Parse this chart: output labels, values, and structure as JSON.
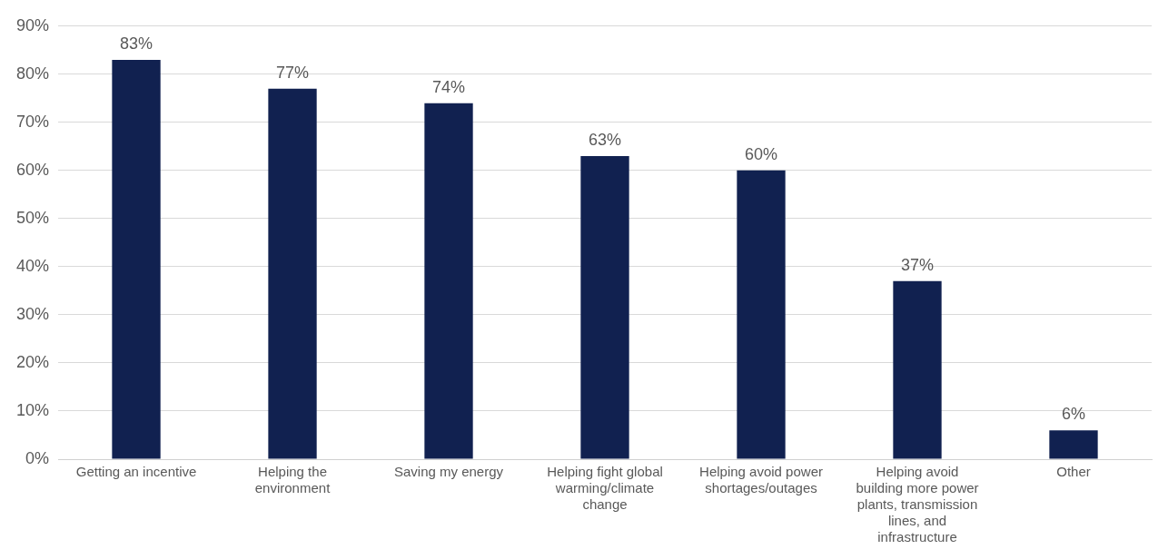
{
  "chart_data": {
    "type": "bar",
    "categories": [
      "Getting an incentive",
      "Helping the environment",
      "Saving my energy",
      "Helping fight global warming/climate change",
      "Helping avoid power shortages/outages",
      "Helping avoid building more power plants, transmission lines, and infrastructure",
      "Other"
    ],
    "values": [
      83,
      77,
      74,
      63,
      60,
      37,
      6
    ],
    "value_labels": [
      "83%",
      "77%",
      "74%",
      "63%",
      "60%",
      "37%",
      "6%"
    ],
    "color": "#112150",
    "ylim": [
      0,
      90
    ],
    "yticks": [
      {
        "value": 0,
        "label": "0%"
      },
      {
        "value": 10,
        "label": "10%"
      },
      {
        "value": 20,
        "label": "20%"
      },
      {
        "value": 30,
        "label": "30%"
      },
      {
        "value": 40,
        "label": "40%"
      },
      {
        "value": 50,
        "label": "50%"
      },
      {
        "value": 60,
        "label": "60%"
      },
      {
        "value": 70,
        "label": "70%"
      },
      {
        "value": 80,
        "label": "80%"
      },
      {
        "value": 90,
        "label": "90%"
      }
    ],
    "grid": "y",
    "legend": false
  }
}
